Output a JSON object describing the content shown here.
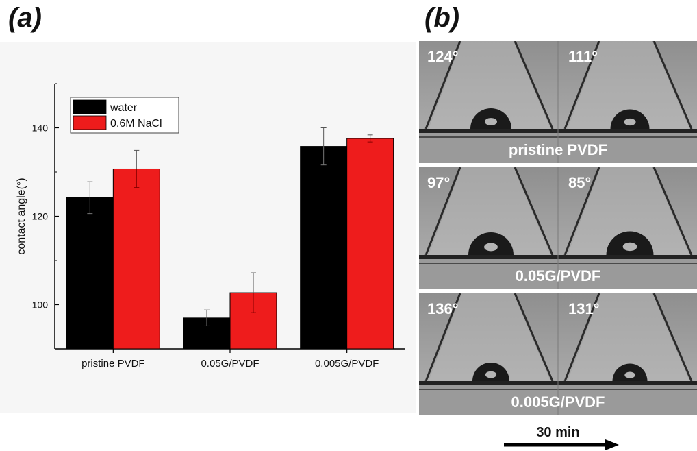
{
  "panel_labels": {
    "a": "(a)",
    "b": "(b)"
  },
  "chart_data": {
    "type": "bar",
    "title": "",
    "xlabel": "",
    "ylabel": "contact angle(°)",
    "ylim": [
      90,
      150
    ],
    "yticks": [
      100,
      120,
      140
    ],
    "categories": [
      "pristine PVDF",
      "0.05G/PVDF",
      "0.005G/PVDF"
    ],
    "series": [
      {
        "name": "water",
        "color": "#000000",
        "values": [
          124.2,
          97.0,
          135.8
        ],
        "errors": [
          3.6,
          1.8,
          4.2
        ]
      },
      {
        "name": "0.6M NaCl",
        "color": "#ee1c1c",
        "values": [
          130.7,
          102.7,
          137.6
        ],
        "errors": [
          4.2,
          4.5,
          0.8
        ]
      }
    ],
    "legend_position": "top-left",
    "grid": false
  },
  "photos": [
    {
      "angle_left": "124°",
      "angle_right": "111°",
      "label": "pristine PVDF",
      "drop_left_r": 1.0,
      "drop_right_r": 0.95
    },
    {
      "angle_left": "97°",
      "angle_right": "85°",
      "label": "0.05G/PVDF",
      "drop_left_r": 1.1,
      "drop_right_r": 1.15
    },
    {
      "angle_left": "136°",
      "angle_right": "131°",
      "label": "0.005G/PVDF",
      "drop_left_r": 0.9,
      "drop_right_r": 0.85
    }
  ],
  "time_axis": {
    "label": "30 min"
  }
}
